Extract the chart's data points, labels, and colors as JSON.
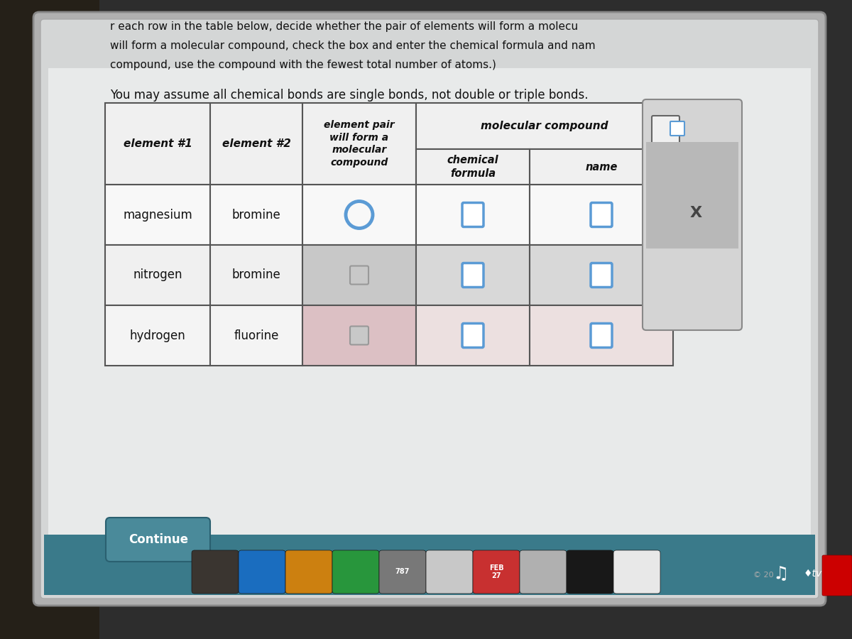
{
  "bg_outer": "#2a2a2a",
  "bg_photo_left": "#3a3530",
  "screen_bg": "#d8dada",
  "content_bg": "#e2e4e4",
  "table_bg": "#f0f0f0",
  "footer_teal": "#3a7a8a",
  "text_dark": "#111111",
  "table_border": "#666666",
  "header_bg": "#f0f0f0",
  "row0_col2_bg": "#f4f4f4",
  "row1_col2_bg": "#c8c8c8",
  "row2_col2_bg": "#e0c8cc",
  "row0_col34_bg": "#f4f4f4",
  "row1_col34_bg": "#d8d8d8",
  "row2_col34_bg": "#ede0e0",
  "row_elem_bg": "#f8f8f8",
  "checkbox_blue": "#5b9bd5",
  "checkbox_gray_fg": "#aaaaaa",
  "checkbox_gray_bg": "#c8c8c8",
  "checkbox_pink_bg": "#d4b0b4",
  "right_panel_bg": "#d0d2d2",
  "right_panel_border": "#888888",
  "continue_btn": "#4a8a9a",
  "intro_line1": "r each row in the table below, decide whether the pair of elements will form a molecu",
  "intro_line2": "will form a molecular compound, check the box and enter the chemical formula and nam",
  "intro_line3": "compound, use the compound with the fewest total number of atoms.)",
  "assumption": "You may assume all chemical bonds are single bonds, not double or triple bonds.",
  "rows": [
    [
      "magnesium",
      "bromine"
    ],
    [
      "nitrogen",
      "bromine"
    ],
    [
      "hydrogen",
      "fluorine"
    ]
  ],
  "copyright": "© 20",
  "dock_icons": [
    {
      "color": "#3a3a3a",
      "label": ""
    },
    {
      "color": "#1a70c0",
      "label": ""
    },
    {
      "color": "#d08020",
      "label": ""
    },
    {
      "color": "#30a040",
      "label": ""
    },
    {
      "color": "#888888",
      "label": "787"
    },
    {
      "color": "#d0d0d0",
      "label": ""
    },
    {
      "color": "#d04040",
      "label": "FEB\n27"
    },
    {
      "color": "#c0c0c0",
      "label": ""
    },
    {
      "color": "#606060",
      "label": ""
    },
    {
      "color": "#101010",
      "label": ""
    }
  ]
}
